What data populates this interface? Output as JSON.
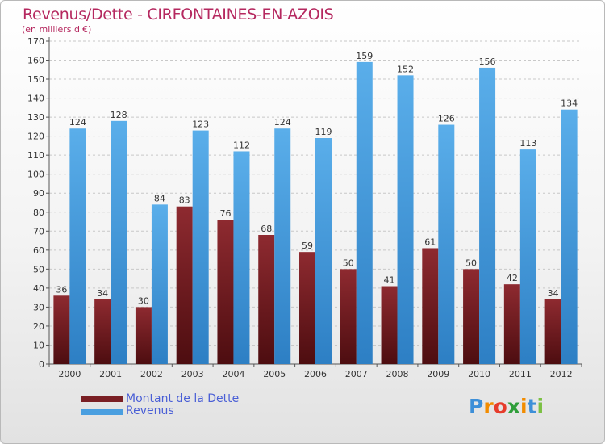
{
  "header": {
    "title": "Revenus/Dette - CIRFONTAINES-EN-AZOIS",
    "subtitle": "(en milliers d'€)"
  },
  "colors": {
    "title": "#b5285f",
    "dette": "#7a1f24",
    "revenus": "#4a9fe0",
    "legend_text": "#4a5fd6"
  },
  "chart_data": {
    "type": "bar",
    "title": "Revenus/Dette - CIRFONTAINES-EN-AZOIS",
    "ylabel": "(en milliers d'€)",
    "xlabel": "",
    "categories": [
      "2000",
      "2001",
      "2002",
      "2003",
      "2004",
      "2005",
      "2006",
      "2007",
      "2008",
      "2009",
      "2010",
      "2011",
      "2012"
    ],
    "series": [
      {
        "name": "Montant de la Dette",
        "values": [
          36,
          34,
          30,
          83,
          76,
          68,
          59,
          50,
          41,
          61,
          50,
          42,
          34
        ]
      },
      {
        "name": "Revenus",
        "values": [
          124,
          128,
          84,
          123,
          112,
          124,
          119,
          159,
          152,
          126,
          156,
          113,
          134
        ]
      }
    ],
    "ylim": [
      0,
      170
    ],
    "ytick_step": 10,
    "grid": true,
    "legend": "bottom-left"
  },
  "legend": {
    "items": [
      {
        "label": "Montant de la Dette",
        "color": "#7a1f24"
      },
      {
        "label": "Revenus",
        "color": "#4a9fe0"
      }
    ]
  },
  "logo": {
    "text": "Proxiti",
    "letters": [
      "P",
      "r",
      "o",
      "x",
      "i",
      "t",
      "i"
    ],
    "letter_colors": [
      "#3d8fd8",
      "#f28c00",
      "#e63c2b",
      "#2f9e3a",
      "#f28c00",
      "#3d8fd8",
      "#7bc043"
    ]
  }
}
